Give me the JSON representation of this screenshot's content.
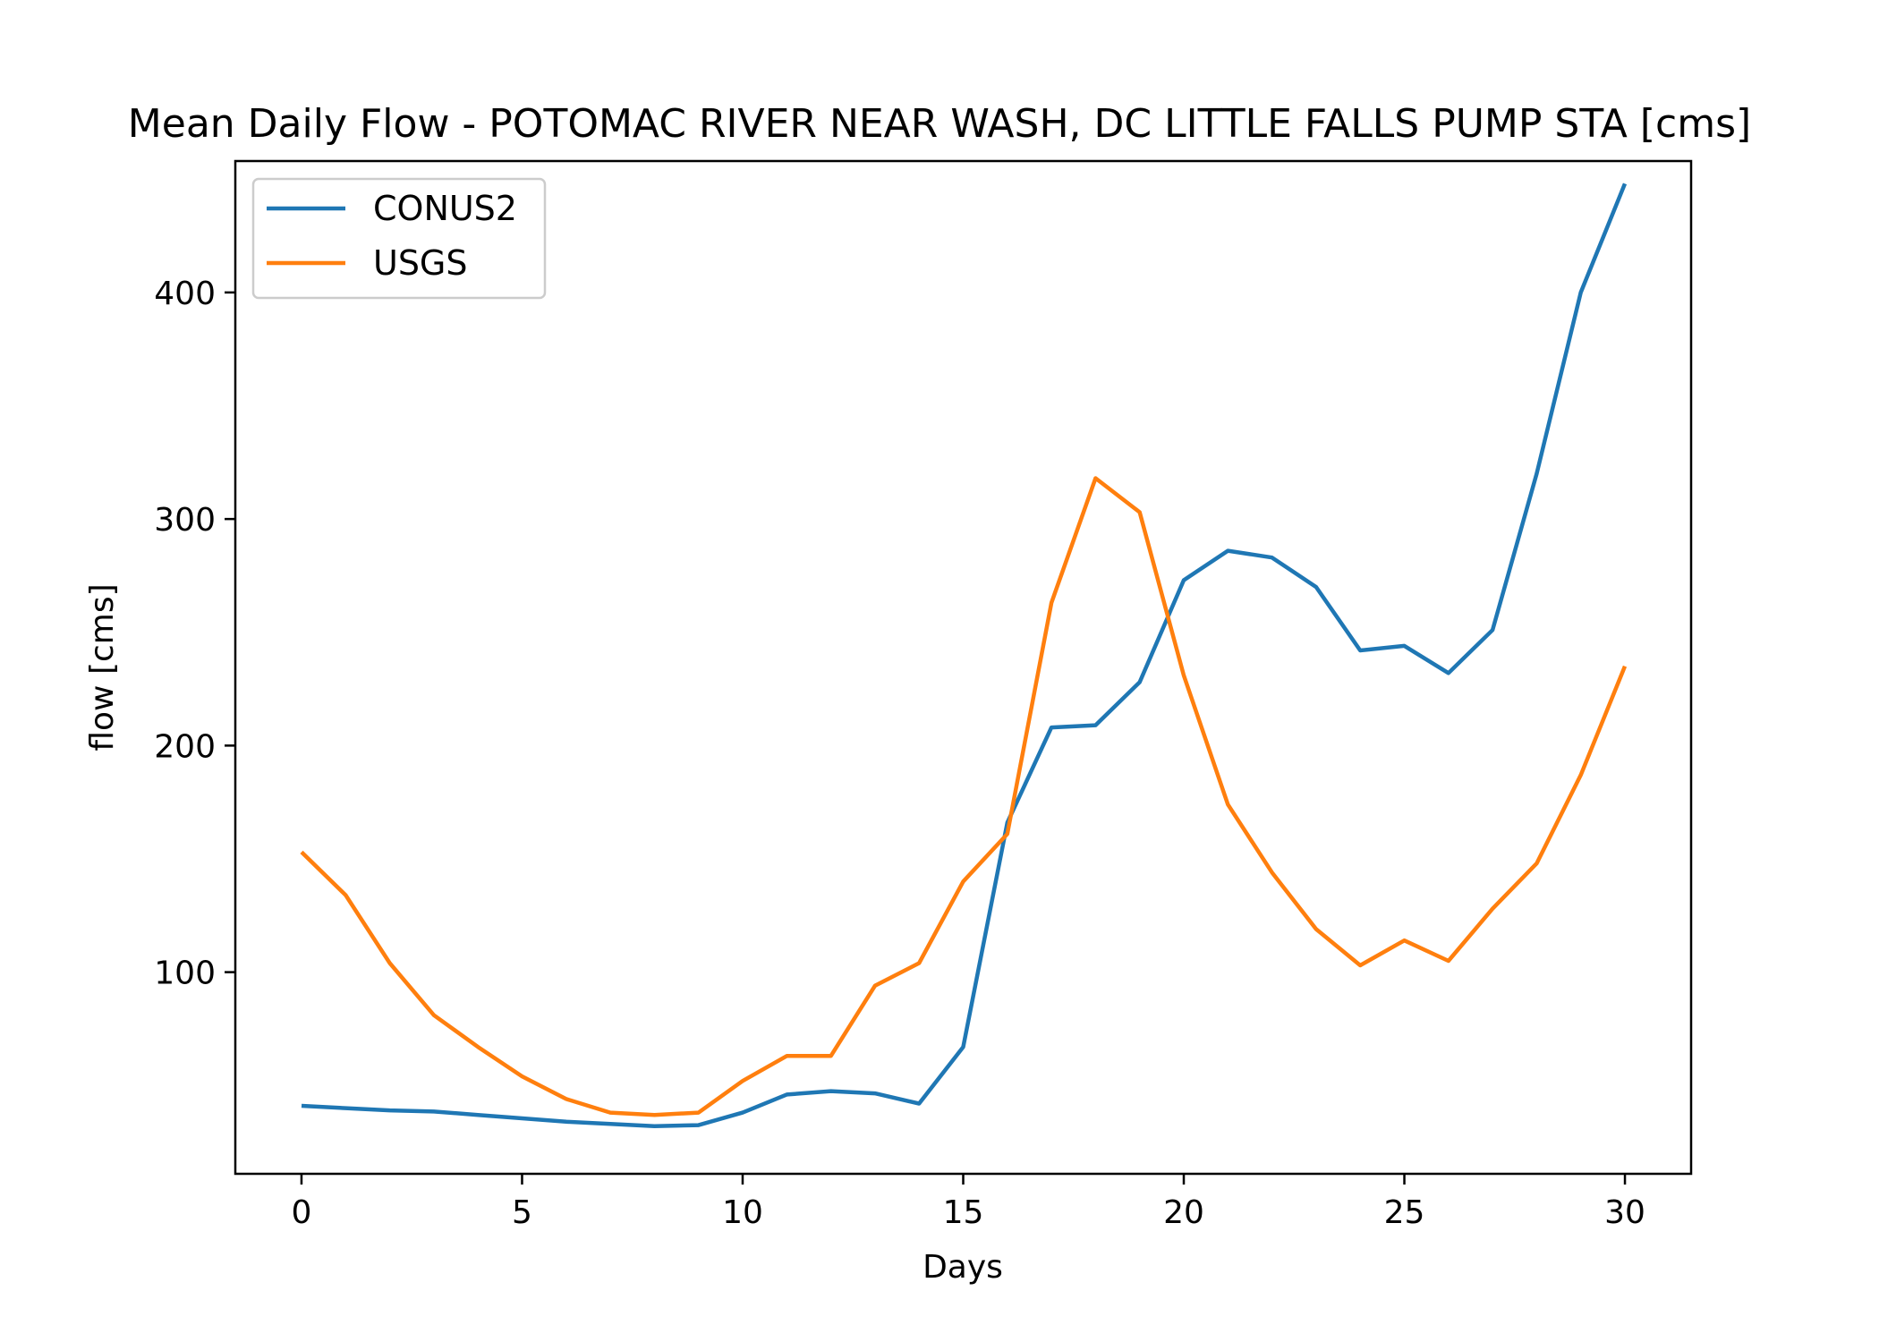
{
  "chart_data": {
    "type": "line",
    "title": "Mean Daily Flow - POTOMAC RIVER NEAR WASH, DC LITTLE FALLS PUMP STA [cms]",
    "xlabel": "Days",
    "ylabel": "flow [cms]",
    "x": [
      0,
      1,
      2,
      3,
      4,
      5,
      6,
      7,
      8,
      9,
      10,
      11,
      12,
      13,
      14,
      15,
      16,
      17,
      18,
      19,
      20,
      21,
      22,
      23,
      24,
      25,
      26,
      27,
      28,
      29,
      30
    ],
    "xlim": [
      -1.5,
      31.5
    ],
    "ylim": [
      11,
      458
    ],
    "xticks": [
      0,
      5,
      10,
      15,
      20,
      25,
      30
    ],
    "yticks": [
      100,
      200,
      300,
      400
    ],
    "grid": false,
    "legend_position": "top-left",
    "series": [
      {
        "name": "CONUS2",
        "color": "#1f77b4",
        "values": [
          41,
          40,
          39,
          38.5,
          37,
          35.5,
          34,
          33,
          32,
          32.5,
          38,
          46,
          47.5,
          46.5,
          42,
          67,
          166,
          208,
          209,
          228,
          273,
          286,
          283,
          270,
          242,
          244,
          232,
          251,
          320,
          400,
          448
        ]
      },
      {
        "name": "USGS",
        "color": "#ff7f0e",
        "values": [
          153,
          134,
          104,
          81,
          67,
          54,
          44,
          38,
          37,
          38,
          52,
          63,
          63,
          94,
          104,
          140,
          161,
          263,
          318,
          303,
          231,
          174,
          144,
          119,
          103,
          114,
          105,
          128,
          148,
          187,
          235
        ]
      }
    ]
  }
}
